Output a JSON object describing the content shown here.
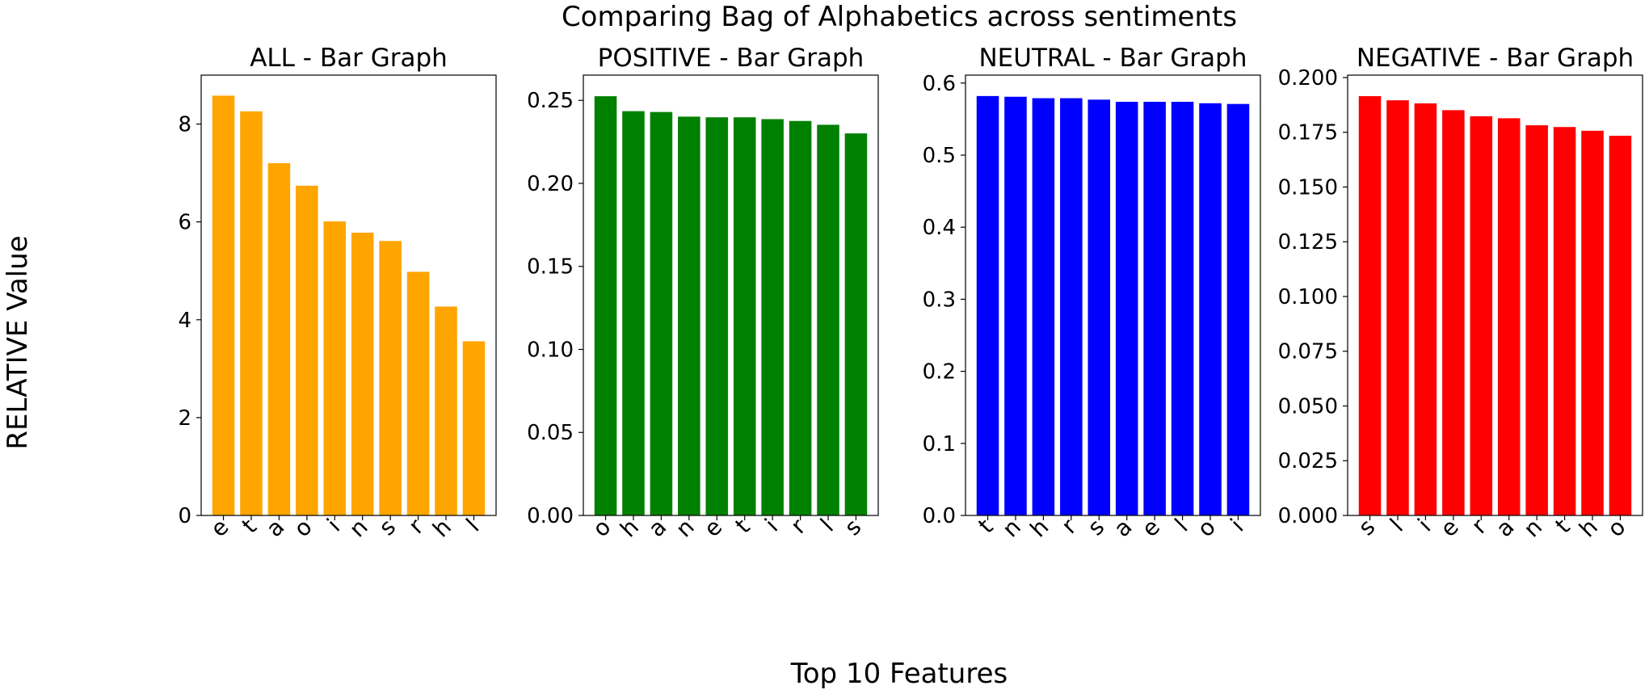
{
  "figure": {
    "title": "Comparing Bag of Alphabetics across sentiments",
    "xlabel": "Top 10 Features",
    "ylabel": "RELATIVE Value"
  },
  "chart_data": [
    {
      "type": "bar",
      "title": "ALL - Bar Graph",
      "color": "#FFA500",
      "categories": [
        "e",
        "t",
        "a",
        "o",
        "i",
        "n",
        "s",
        "r",
        "h",
        "l"
      ],
      "values": [
        8.58,
        8.26,
        7.2,
        6.74,
        6.01,
        5.78,
        5.61,
        4.98,
        4.27,
        3.56
      ],
      "ylim": [
        0,
        9.0
      ],
      "yticks": [
        0,
        2,
        4,
        6,
        8
      ],
      "ytick_labels": [
        "0",
        "2",
        "4",
        "6",
        "8"
      ]
    },
    {
      "type": "bar",
      "title": "POSITIVE - Bar Graph",
      "color": "#008000",
      "categories": [
        "o",
        "h",
        "a",
        "n",
        "e",
        "t",
        "i",
        "r",
        "l",
        "s"
      ],
      "values": [
        0.2525,
        0.2435,
        0.243,
        0.2402,
        0.2398,
        0.2398,
        0.2387,
        0.2376,
        0.2353,
        0.2301
      ],
      "ylim": [
        0,
        0.2652
      ],
      "yticks": [
        0,
        0.05,
        0.1,
        0.15,
        0.2,
        0.25
      ],
      "ytick_labels": [
        "0.00",
        "0.05",
        "0.10",
        "0.15",
        "0.20",
        "0.25"
      ]
    },
    {
      "type": "bar",
      "title": "NEUTRAL - Bar Graph",
      "color": "#0000FF",
      "categories": [
        "t",
        "n",
        "h",
        "r",
        "s",
        "a",
        "e",
        "l",
        "o",
        "i"
      ],
      "values": [
        0.582,
        0.581,
        0.579,
        0.579,
        0.577,
        0.574,
        0.574,
        0.574,
        0.572,
        0.571
      ],
      "ylim": [
        0,
        0.611
      ],
      "yticks": [
        0,
        0.1,
        0.2,
        0.3,
        0.4,
        0.5,
        0.6
      ],
      "ytick_labels": [
        "0.0",
        "0.1",
        "0.2",
        "0.3",
        "0.4",
        "0.5",
        "0.6"
      ]
    },
    {
      "type": "bar",
      "title": "NEGATIVE - Bar Graph",
      "color": "#FF0000",
      "categories": [
        "s",
        "l",
        "i",
        "e",
        "r",
        "a",
        "n",
        "t",
        "h",
        "o"
      ],
      "values": [
        0.1915,
        0.1896,
        0.1882,
        0.1851,
        0.1823,
        0.1814,
        0.1782,
        0.1774,
        0.1757,
        0.1734
      ],
      "ylim": [
        0,
        0.2011
      ],
      "yticks": [
        0,
        0.025,
        0.05,
        0.075,
        0.1,
        0.125,
        0.15,
        0.175,
        0.2
      ],
      "ytick_labels": [
        "0.000",
        "0.025",
        "0.050",
        "0.075",
        "0.100",
        "0.125",
        "0.150",
        "0.175",
        "0.200"
      ]
    }
  ]
}
